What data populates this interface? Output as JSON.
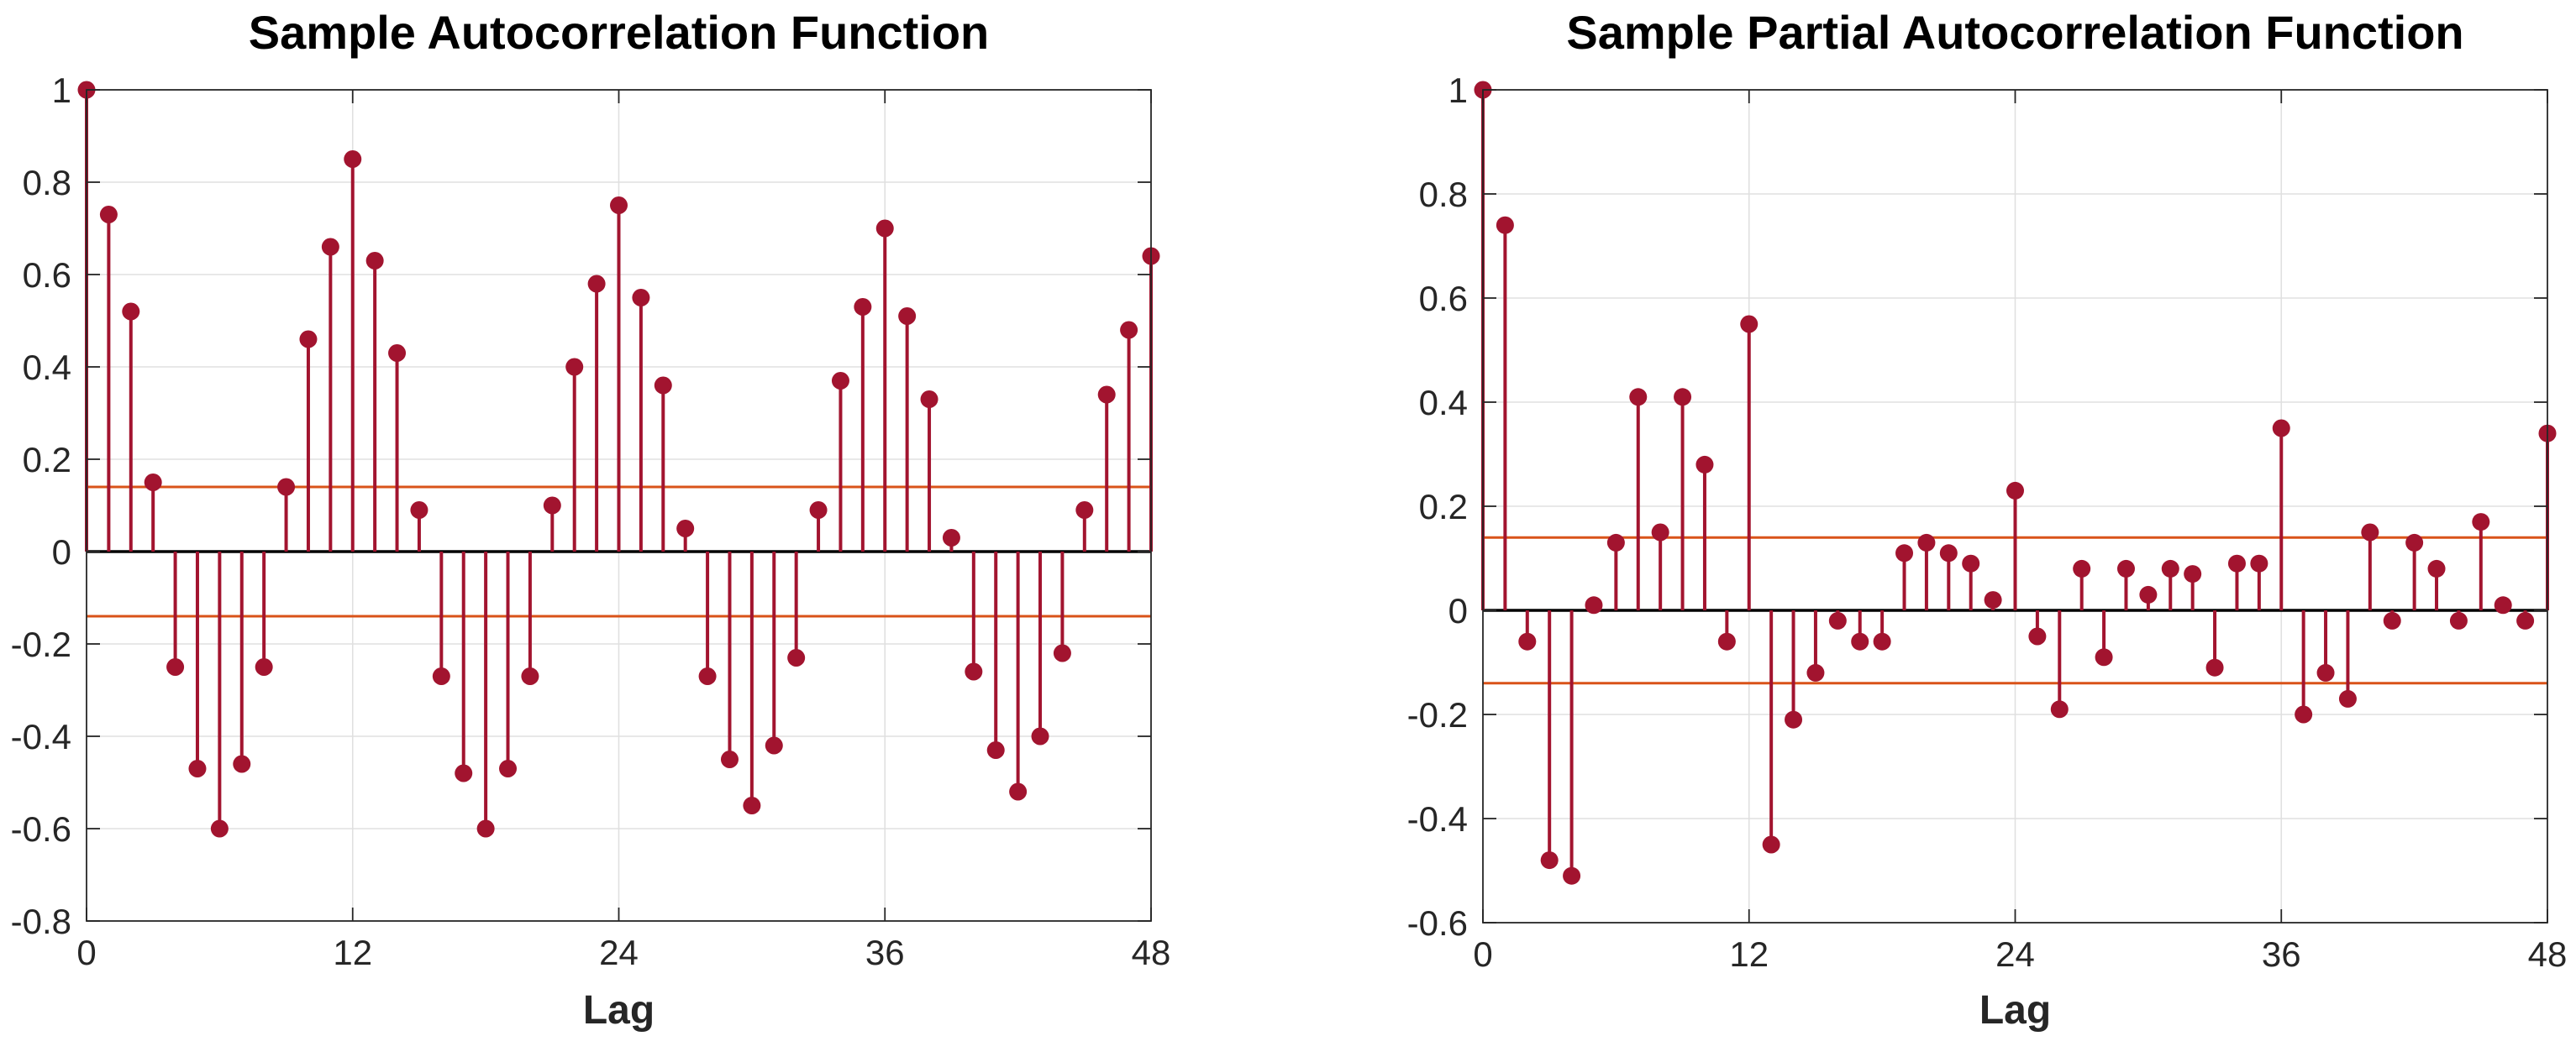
{
  "figure": {
    "background": "#ffffff"
  },
  "colors": {
    "stem": "#A2142F",
    "marker": "#A2142F",
    "confidence_line": "#D95319",
    "gridline": "#E0E0E0",
    "axis_frame": "#262626",
    "zero_line": "#000000",
    "tick_label": "#262626",
    "title": "#000000"
  },
  "chart_data": [
    {
      "type": "stem",
      "title": "Sample Autocorrelation Function",
      "xlabel": "Lag",
      "ylabel": "",
      "xlim": [
        0,
        48
      ],
      "ylim": [
        -0.8,
        1
      ],
      "grid": true,
      "x_tick_labels": [
        "0",
        "12",
        "24",
        "36",
        "48"
      ],
      "y_tick_labels": [
        "1",
        "0.8",
        "0.6",
        "0.4",
        "0.2",
        "0",
        "-0.2",
        "-0.4",
        "-0.6",
        "-0.8"
      ],
      "confidence_bounds": [
        0.14,
        -0.14
      ],
      "lags": [
        0,
        1,
        2,
        3,
        4,
        5,
        6,
        7,
        8,
        9,
        10,
        11,
        12,
        13,
        14,
        15,
        16,
        17,
        18,
        19,
        20,
        21,
        22,
        23,
        24,
        25,
        26,
        27,
        28,
        29,
        30,
        31,
        32,
        33,
        34,
        35,
        36,
        37,
        38,
        39,
        40,
        41,
        42,
        43,
        44,
        45,
        46,
        47,
        48
      ],
      "values": [
        1.0,
        0.73,
        0.52,
        0.15,
        -0.25,
        -0.47,
        -0.6,
        -0.46,
        -0.25,
        0.14,
        0.46,
        0.66,
        0.85,
        0.63,
        0.43,
        0.09,
        -0.27,
        -0.48,
        -0.6,
        -0.47,
        -0.27,
        0.1,
        0.4,
        0.58,
        0.75,
        0.55,
        0.36,
        0.05,
        -0.27,
        -0.45,
        -0.55,
        -0.42,
        -0.23,
        0.09,
        0.37,
        0.53,
        0.7,
        0.51,
        0.33,
        0.03,
        -0.26,
        -0.43,
        -0.52,
        -0.4,
        -0.22,
        0.09,
        0.34,
        0.48,
        0.64
      ]
    },
    {
      "type": "stem",
      "title": "Sample Partial Autocorrelation Function",
      "xlabel": "Lag",
      "ylabel": "",
      "xlim": [
        0,
        48
      ],
      "ylim": [
        -0.6,
        1
      ],
      "grid": true,
      "x_tick_labels": [
        "0",
        "12",
        "24",
        "36",
        "48"
      ],
      "y_tick_labels": [
        "1",
        "0.8",
        "0.6",
        "0.4",
        "0.2",
        "0",
        "-0.2",
        "-0.4",
        "-0.6"
      ],
      "confidence_bounds": [
        0.14,
        -0.14
      ],
      "lags": [
        0,
        1,
        2,
        3,
        4,
        5,
        6,
        7,
        8,
        9,
        10,
        11,
        12,
        13,
        14,
        15,
        16,
        17,
        18,
        19,
        20,
        21,
        22,
        23,
        24,
        25,
        26,
        27,
        28,
        29,
        30,
        31,
        32,
        33,
        34,
        35,
        36,
        37,
        38,
        39,
        40,
        41,
        42,
        43,
        44,
        45,
        46,
        47,
        48
      ],
      "values": [
        1.0,
        0.74,
        -0.06,
        -0.48,
        -0.51,
        0.01,
        0.13,
        0.41,
        0.15,
        0.41,
        0.28,
        -0.06,
        0.55,
        -0.45,
        -0.21,
        -0.12,
        -0.02,
        -0.06,
        -0.06,
        0.11,
        0.13,
        0.11,
        0.09,
        0.02,
        0.23,
        -0.05,
        -0.19,
        0.08,
        -0.09,
        0.08,
        0.03,
        0.08,
        0.07,
        -0.11,
        0.09,
        0.09,
        0.35,
        -0.2,
        -0.12,
        -0.17,
        0.15,
        -0.02,
        0.13,
        0.08,
        -0.02,
        0.17,
        0.01,
        -0.02,
        0.34
      ]
    }
  ]
}
